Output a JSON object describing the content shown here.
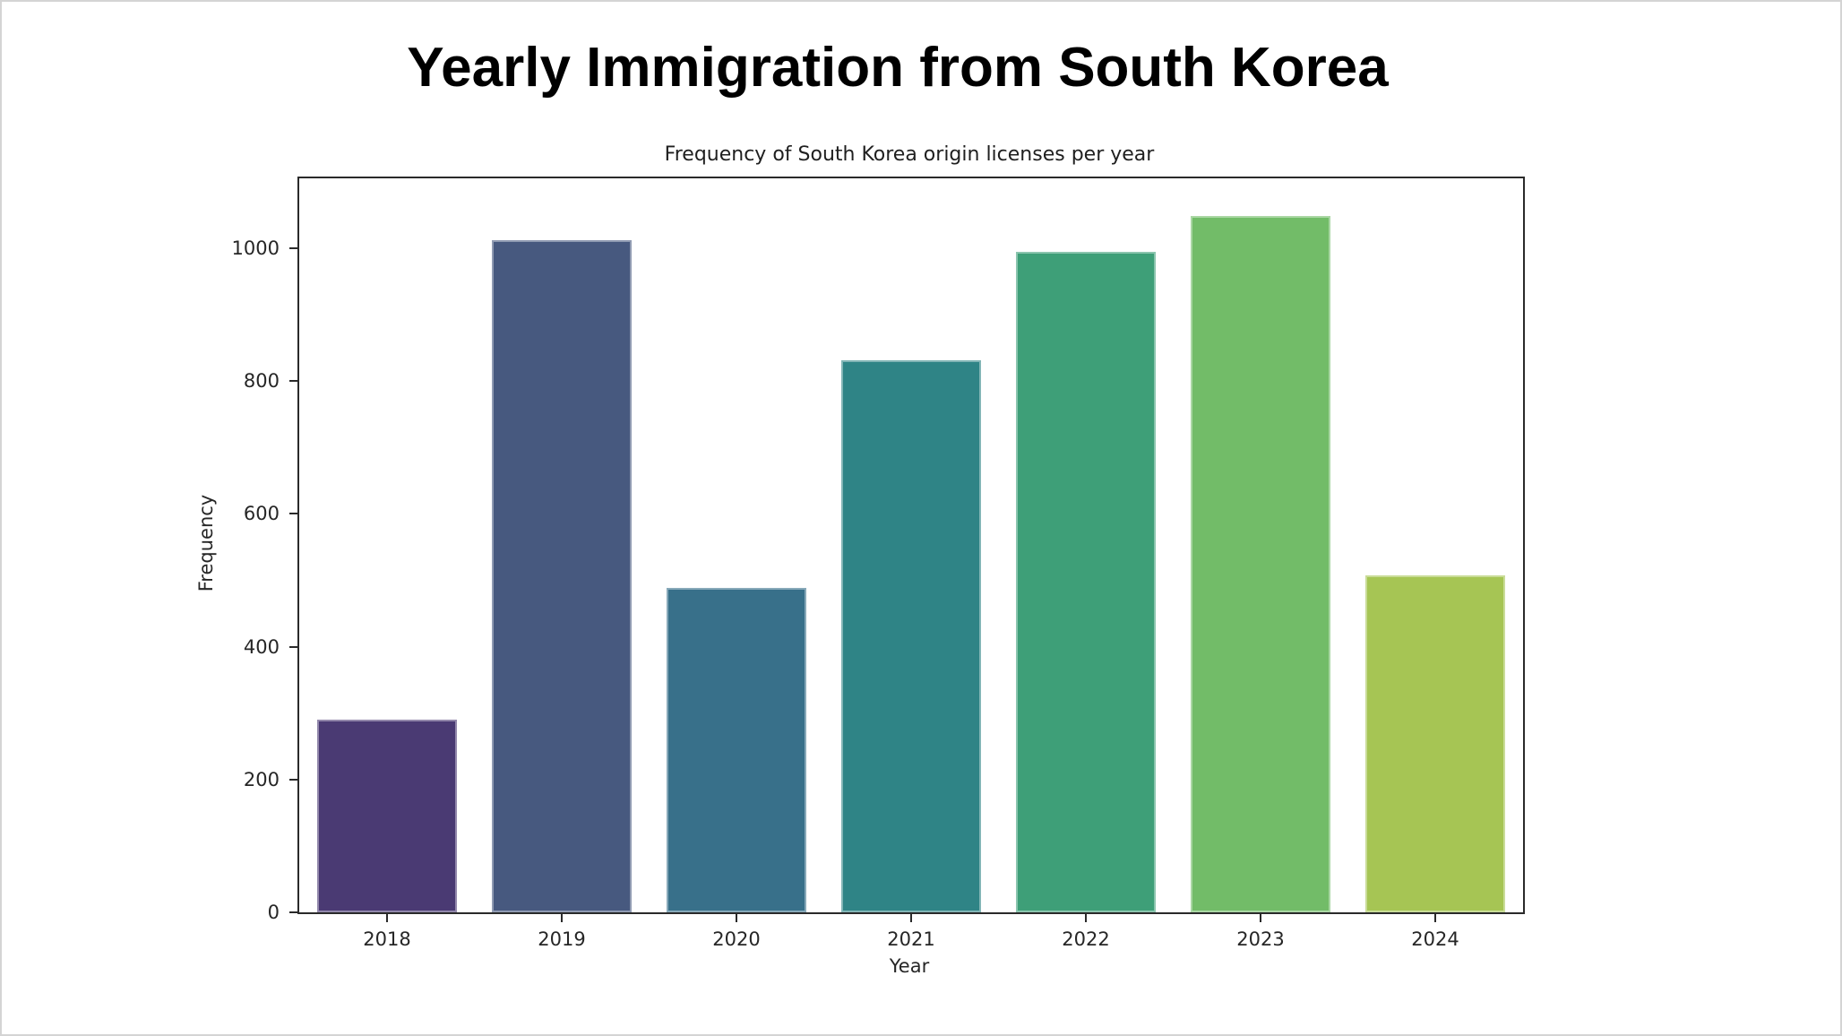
{
  "page": {
    "main_title": "Yearly Immigration from South Korea"
  },
  "chart_data": {
    "type": "bar",
    "title": "Frequency of South Korea origin licenses per year",
    "xlabel": "Year",
    "ylabel": "Frequency",
    "categories": [
      "2018",
      "2019",
      "2020",
      "2021",
      "2022",
      "2023",
      "2024"
    ],
    "values": [
      290,
      1012,
      489,
      831,
      995,
      1048,
      507
    ],
    "bar_colors": [
      "#4a3a73",
      "#47597f",
      "#38708a",
      "#2f8486",
      "#3e9f78",
      "#72bc68",
      "#a6c554"
    ],
    "yticks": [
      0,
      200,
      400,
      600,
      800,
      1000
    ],
    "ylim": [
      0,
      1105
    ],
    "grid": false,
    "legend_position": "none",
    "colors": {
      "spine": "#2a2a2a",
      "text": "#262626",
      "background": "#ffffff"
    }
  }
}
